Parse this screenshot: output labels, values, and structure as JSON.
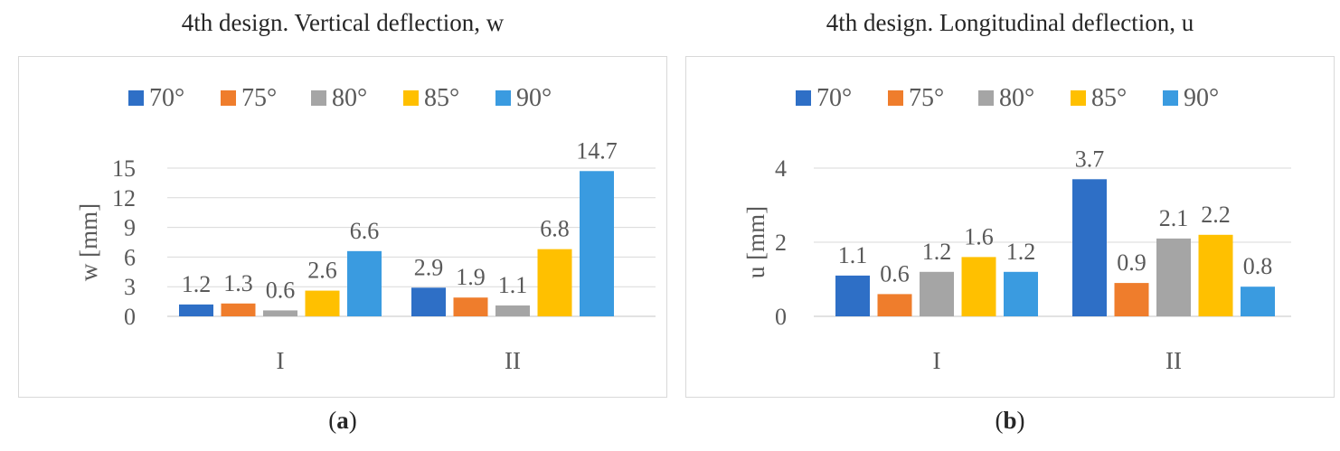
{
  "captions": {
    "a_open": "(",
    "a_letter": "a",
    "a_close": ")",
    "b_open": "(",
    "b_letter": "b",
    "b_close": ")"
  },
  "colors": {
    "70°": "#2e6fc6",
    "75°": "#ef7d2c",
    "80°": "#a5a5a5",
    "85°": "#ffc000",
    "90°": "#3a9be0",
    "grid": "#d9d9d9",
    "text": "#595959"
  },
  "chart_data": [
    {
      "type": "bar",
      "title": "4th design. Vertical deflection, w",
      "xlabel": "",
      "ylabel": "w [mm]",
      "categories": [
        "I",
        "II"
      ],
      "ylim": [
        0,
        15
      ],
      "yticks": [
        0,
        3,
        6,
        9,
        12,
        15
      ],
      "legend_position": "top",
      "series": [
        {
          "name": "70°",
          "values": [
            1.2,
            2.9
          ]
        },
        {
          "name": "75°",
          "values": [
            1.3,
            1.9
          ]
        },
        {
          "name": "80°",
          "values": [
            0.6,
            1.1
          ]
        },
        {
          "name": "85°",
          "values": [
            2.6,
            6.8
          ]
        },
        {
          "name": "90°",
          "values": [
            6.6,
            14.7
          ]
        }
      ]
    },
    {
      "type": "bar",
      "title": "4th design. Longitudinal deflection, u",
      "xlabel": "",
      "ylabel": "u [mm]",
      "categories": [
        "I",
        "II"
      ],
      "ylim": [
        0,
        4
      ],
      "yticks": [
        0,
        2,
        4
      ],
      "legend_position": "top",
      "series": [
        {
          "name": "70°",
          "values": [
            1.1,
            3.7
          ]
        },
        {
          "name": "75°",
          "values": [
            0.6,
            0.9
          ]
        },
        {
          "name": "80°",
          "values": [
            1.2,
            2.1
          ]
        },
        {
          "name": "85°",
          "values": [
            1.6,
            2.2
          ]
        },
        {
          "name": "90°",
          "values": [
            1.2,
            0.8
          ]
        }
      ]
    }
  ]
}
